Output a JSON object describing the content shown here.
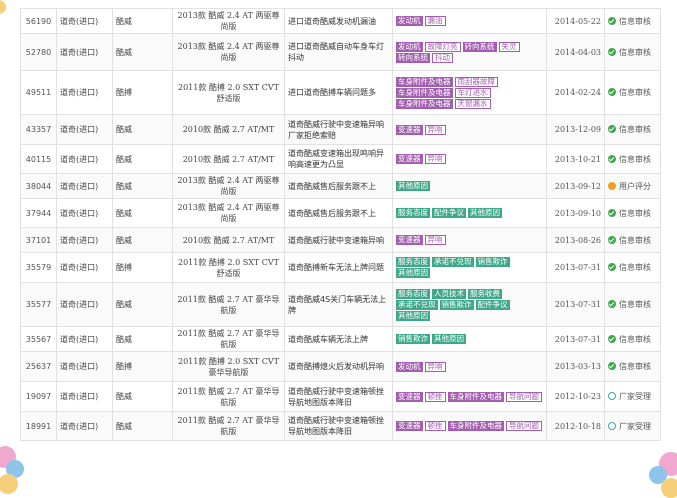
{
  "rows": [
    {
      "id": "56190",
      "brand": "道奇(进口)",
      "series": "酷威",
      "model": "2013款 酷威 2.4 AT 两驱尊尚版",
      "desc": "进口道奇酷威发动机漏油",
      "tags": [
        {
          "text": "发动机",
          "style": "purple"
        },
        {
          "text": "漏油",
          "style": "outline-p"
        }
      ],
      "date": "2014-05-22",
      "status": "信息审核",
      "status_icon": "check-circle-icon"
    },
    {
      "id": "52780",
      "brand": "道奇(进口)",
      "series": "酷威",
      "model": "2013款 酷威 2.4 AT 两驱尊尚版",
      "desc": "进口道奇酷威自动车身车灯抖动",
      "tags": [
        {
          "text": "发动机",
          "style": "purple"
        },
        {
          "text": "故障灯亮",
          "style": "outline-p"
        },
        {
          "text": "转向系统",
          "style": "purple"
        },
        {
          "text": "失灵",
          "style": "outline-p"
        },
        {
          "text": "转向系统",
          "style": "purple"
        },
        {
          "text": "抖动",
          "style": "outline-p"
        }
      ],
      "date": "2014-04-03",
      "status": "信息审核",
      "status_icon": "check-circle-icon"
    },
    {
      "id": "49511",
      "brand": "道奇(进口)",
      "series": "酷搏",
      "model": "2011款 酷搏 2.0 SXT CVT 舒适版",
      "desc": "进口道奇酷搏车辆问题多",
      "tags": [
        {
          "text": "车身附件及电器",
          "style": "purple"
        },
        {
          "text": "雨刮器故障",
          "style": "outline-p"
        },
        {
          "text": "车身附件及电器",
          "style": "purple"
        },
        {
          "text": "车灯进水",
          "style": "outline-p"
        },
        {
          "text": "车身附件及电器",
          "style": "purple"
        },
        {
          "text": "天窗漏水",
          "style": "outline-p"
        }
      ],
      "date": "2014-02-24",
      "status": "信息审核",
      "status_icon": "check-circle-icon"
    },
    {
      "id": "43357",
      "brand": "道奇(进口)",
      "series": "酷威",
      "model": "2010款 酷威 2.7 AT/MT",
      "desc": "道奇酷威行驶中变速箱异响厂家拒绝索赔",
      "tags": [
        {
          "text": "变速器",
          "style": "purple"
        },
        {
          "text": "异响",
          "style": "outline-p"
        }
      ],
      "date": "2013-12-09",
      "status": "信息审核",
      "status_icon": "check-circle-icon"
    },
    {
      "id": "40115",
      "brand": "道奇(进口)",
      "series": "酷威",
      "model": "2010款 酷威 2.7 AT/MT",
      "desc": "道奇酷威变速箱出现鸣响异响高速更为凸显",
      "tags": [
        {
          "text": "变速器",
          "style": "purple"
        },
        {
          "text": "异响",
          "style": "outline-p"
        }
      ],
      "date": "2013-10-21",
      "status": "信息审核",
      "status_icon": "check-circle-icon"
    },
    {
      "id": "38044",
      "brand": "道奇(进口)",
      "series": "酷威",
      "model": "2013款 酷威 2.4 AT 两驱尊尚版",
      "desc": "道奇酷威售后服务跟不上",
      "tags": [
        {
          "text": "其他原因",
          "style": "green"
        }
      ],
      "date": "2013-09-12",
      "status": "用户评分",
      "status_icon": "user-circle-icon"
    },
    {
      "id": "37944",
      "brand": "道奇(进口)",
      "series": "酷威",
      "model": "2013款 酷威 2.4 AT 两驱尊尚版",
      "desc": "道奇酷威售后服务跟不上",
      "tags": [
        {
          "text": "服务态度",
          "style": "green"
        },
        {
          "text": "配件争议",
          "style": "green"
        },
        {
          "text": "其他原因",
          "style": "green"
        }
      ],
      "date": "2013-09-10",
      "status": "信息审核",
      "status_icon": "check-circle-icon"
    },
    {
      "id": "37101",
      "brand": "道奇(进口)",
      "series": "酷威",
      "model": "2010款 酷威 2.7 AT/MT",
      "desc": "道奇酷威行驶中变速箱异响",
      "tags": [
        {
          "text": "变速器",
          "style": "purple"
        },
        {
          "text": "异响",
          "style": "outline-p"
        }
      ],
      "date": "2013-08-26",
      "status": "信息审核",
      "status_icon": "check-circle-icon"
    },
    {
      "id": "35579",
      "brand": "道奇(进口)",
      "series": "酷搏",
      "model": "2011款 酷搏 2.0 SXT CVT 舒适版",
      "desc": "道奇酷搏新车无法上牌问题",
      "tags": [
        {
          "text": "服务态度",
          "style": "green"
        },
        {
          "text": "承诺不兑现",
          "style": "green"
        },
        {
          "text": "销售欺诈",
          "style": "green"
        },
        {
          "text": "其他原因",
          "style": "green"
        }
      ],
      "date": "2013-07-31",
      "status": "信息审核",
      "status_icon": "check-circle-icon"
    },
    {
      "id": "35577",
      "brand": "道奇(进口)",
      "series": "酷威",
      "model": "2011款 酷威 2.7 AT 豪华导航版",
      "desc": "道奇酷威4S关门车辆无法上牌",
      "tags": [
        {
          "text": "服务态度",
          "style": "green"
        },
        {
          "text": "人员技术",
          "style": "green"
        },
        {
          "text": "服务收费",
          "style": "green"
        },
        {
          "text": "承诺不兑现",
          "style": "green"
        },
        {
          "text": "销售欺诈",
          "style": "green"
        },
        {
          "text": "配件争议",
          "style": "green"
        },
        {
          "text": "其他原因",
          "style": "green"
        }
      ],
      "date": "2013-07-31",
      "status": "信息审核",
      "status_icon": "check-circle-icon"
    },
    {
      "id": "35567",
      "brand": "道奇(进口)",
      "series": "酷威",
      "model": "2011款 酷威 2.7 AT 豪华导航版",
      "desc": "道奇酷威车辆无法上牌",
      "tags": [
        {
          "text": "销售欺诈",
          "style": "green"
        },
        {
          "text": "其他原因",
          "style": "green"
        }
      ],
      "date": "2013-07-31",
      "status": "信息审核",
      "status_icon": "check-circle-icon"
    },
    {
      "id": "25637",
      "brand": "道奇(进口)",
      "series": "酷搏",
      "model": "2011款 酷搏 2.0 SXT CVT 豪华导航版",
      "desc": "道奇酷搏熄火后发动机异响",
      "tags": [
        {
          "text": "发动机",
          "style": "purple"
        },
        {
          "text": "异响",
          "style": "outline-p"
        }
      ],
      "date": "2013-03-13",
      "status": "信息审核",
      "status_icon": "check-circle-icon"
    },
    {
      "id": "19097",
      "brand": "道奇(进口)",
      "series": "酷威",
      "model": "2011款 酷威 2.7 AT 豪华导航版",
      "desc": "道奇酷威行驶中变速箱顿挫导航地图版本降旧",
      "tags": [
        {
          "text": "变速器",
          "style": "purple"
        },
        {
          "text": "顿挫",
          "style": "outline-p"
        },
        {
          "text": "车身附件及电器",
          "style": "purple"
        },
        {
          "text": "导航问题",
          "style": "outline-p"
        }
      ],
      "date": "2012-10-23",
      "status": "厂家受理",
      "status_icon": "factory-circle-icon"
    },
    {
      "id": "18991",
      "brand": "道奇(进口)",
      "series": "酷威",
      "model": "2011款 酷威 2.7 AT 豪华导航版",
      "desc": "道奇酷威行驶中变速箱顿挫导航地图版本降旧",
      "tags": [
        {
          "text": "变速器",
          "style": "purple"
        },
        {
          "text": "顿挫",
          "style": "outline-p"
        },
        {
          "text": "车身附件及电器",
          "style": "purple"
        },
        {
          "text": "导航问题",
          "style": "outline-p"
        }
      ],
      "date": "2012-10-18",
      "status": "厂家受理",
      "status_icon": "factory-circle-icon"
    }
  ]
}
